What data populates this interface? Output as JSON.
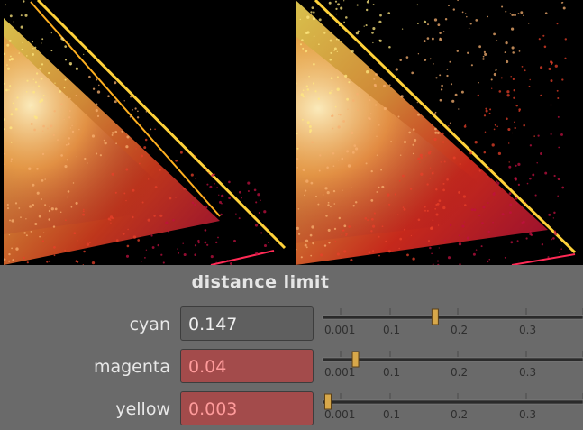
{
  "panel": {
    "title": "distance limit",
    "rows": [
      {
        "label": "cyan",
        "value": "0.147",
        "highlight": false,
        "slider_value": 0.147
      },
      {
        "label": "magenta",
        "value": "0.04",
        "highlight": true,
        "slider_value": 0.04
      },
      {
        "label": "yellow",
        "value": "0.003",
        "highlight": true,
        "slider_value": 0.003
      }
    ],
    "slider_ticks": [
      "0.001",
      "0.1",
      "0.2",
      "0.3"
    ],
    "slider_range": [
      0,
      0.35
    ]
  },
  "plots": [
    {
      "name": "left-plot",
      "triangle_color": "#ff2a55"
    },
    {
      "name": "right-plot",
      "triangle_color": "#ff2a55"
    }
  ],
  "colors": {
    "panel_bg": "#6a6a6a",
    "field_bg": "#5f5f5f",
    "field_highlight_bg": "#a34b4b",
    "field_highlight_text": "#ff9b9b",
    "slider_handle": "#d8a84a"
  }
}
